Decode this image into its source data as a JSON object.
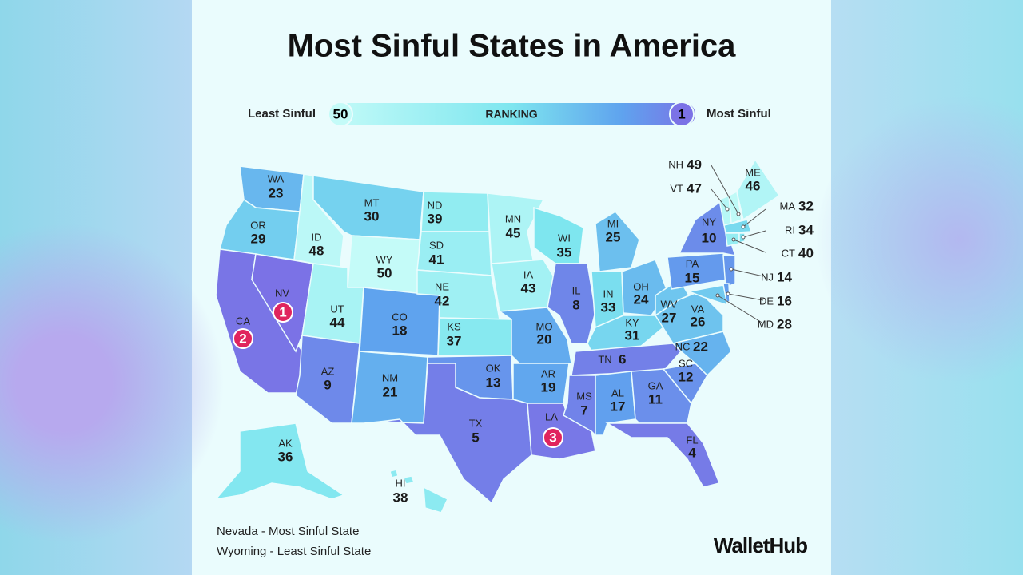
{
  "header": {
    "title": "Most Sinful States in America"
  },
  "legend": {
    "least_label": "Least Sinful",
    "least_rank": 50,
    "center_label": "RANKING",
    "most_rank": 1,
    "most_label": "Most Sinful"
  },
  "states": [
    {
      "abbr": "WA",
      "rank": 23
    },
    {
      "abbr": "OR",
      "rank": 29
    },
    {
      "abbr": "CA",
      "rank": 2
    },
    {
      "abbr": "NV",
      "rank": 1
    },
    {
      "abbr": "ID",
      "rank": 48
    },
    {
      "abbr": "MT",
      "rank": 30
    },
    {
      "abbr": "WY",
      "rank": 50
    },
    {
      "abbr": "UT",
      "rank": 44
    },
    {
      "abbr": "AZ",
      "rank": 9
    },
    {
      "abbr": "CO",
      "rank": 18
    },
    {
      "abbr": "NM",
      "rank": 21
    },
    {
      "abbr": "ND",
      "rank": 39
    },
    {
      "abbr": "SD",
      "rank": 41
    },
    {
      "abbr": "NE",
      "rank": 42
    },
    {
      "abbr": "KS",
      "rank": 37
    },
    {
      "abbr": "OK",
      "rank": 13
    },
    {
      "abbr": "TX",
      "rank": 5
    },
    {
      "abbr": "MN",
      "rank": 45
    },
    {
      "abbr": "IA",
      "rank": 43
    },
    {
      "abbr": "MO",
      "rank": 20
    },
    {
      "abbr": "AR",
      "rank": 19
    },
    {
      "abbr": "LA",
      "rank": 3
    },
    {
      "abbr": "WI",
      "rank": 35
    },
    {
      "abbr": "IL",
      "rank": 8
    },
    {
      "abbr": "MI",
      "rank": 25
    },
    {
      "abbr": "IN",
      "rank": 33
    },
    {
      "abbr": "OH",
      "rank": 24
    },
    {
      "abbr": "KY",
      "rank": 31
    },
    {
      "abbr": "TN",
      "rank": 6
    },
    {
      "abbr": "MS",
      "rank": 7
    },
    {
      "abbr": "AL",
      "rank": 17
    },
    {
      "abbr": "GA",
      "rank": 11
    },
    {
      "abbr": "FL",
      "rank": 4
    },
    {
      "abbr": "SC",
      "rank": 12
    },
    {
      "abbr": "NC",
      "rank": 22
    },
    {
      "abbr": "VA",
      "rank": 26
    },
    {
      "abbr": "WV",
      "rank": 27
    },
    {
      "abbr": "PA",
      "rank": 15
    },
    {
      "abbr": "NY",
      "rank": 10
    },
    {
      "abbr": "NJ",
      "rank": 14
    },
    {
      "abbr": "DE",
      "rank": 16
    },
    {
      "abbr": "MD",
      "rank": 28
    },
    {
      "abbr": "NH",
      "rank": 49
    },
    {
      "abbr": "VT",
      "rank": 47
    },
    {
      "abbr": "ME",
      "rank": 46
    },
    {
      "abbr": "MA",
      "rank": 32
    },
    {
      "abbr": "CT",
      "rank": 40
    },
    {
      "abbr": "RI",
      "rank": 34
    },
    {
      "abbr": "AK",
      "rank": 36
    },
    {
      "abbr": "HI",
      "rank": 38
    }
  ],
  "footer": {
    "notes": [
      "Nevada - Most Sinful State",
      "Wyoming - Least Sinful State"
    ],
    "brand": "WalletHub"
  }
}
